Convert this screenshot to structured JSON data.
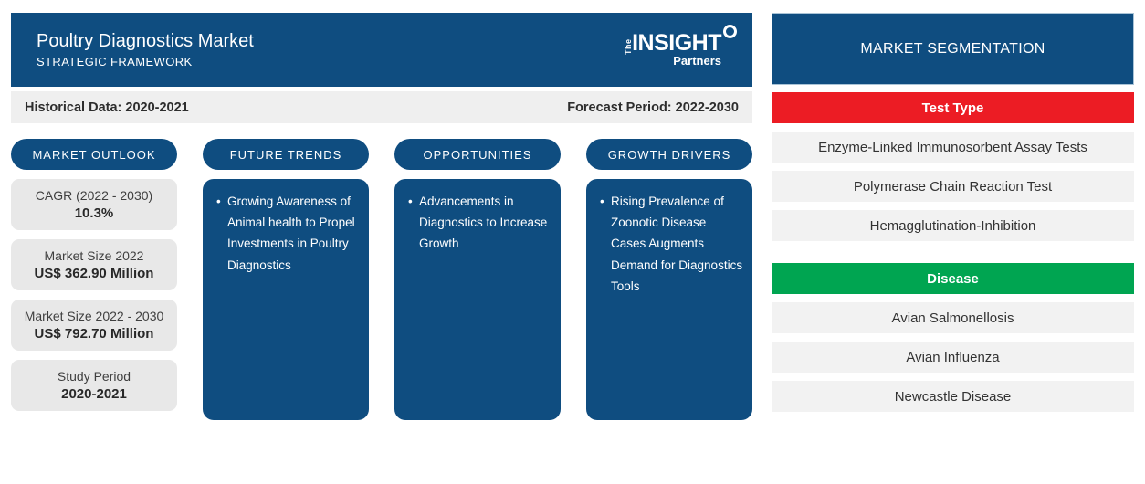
{
  "header": {
    "title": "Poultry Diagnostics Market",
    "subtitle": "STRATEGIC FRAMEWORK",
    "logo": {
      "the": "The",
      "insight": "INSIGHT",
      "partners": "Partners"
    }
  },
  "period_bar": {
    "historical": "Historical Data: 2020-2021",
    "forecast": "Forecast Period: 2022-2030"
  },
  "columns": [
    {
      "pill": "MARKET OUTLOOK",
      "stats": [
        {
          "label": "CAGR (2022 - 2030)",
          "value": "10.3%"
        },
        {
          "label": "Market Size 2022",
          "value": "US$ 362.90 Million"
        },
        {
          "label": "Market Size 2022 - 2030",
          "value": "US$ 792.70 Million"
        },
        {
          "label": "Study Period",
          "value": "2020-2021"
        }
      ]
    },
    {
      "pill": "FUTURE TRENDS",
      "bullet": "Growing Awareness of Animal health to Propel Investments in Poultry Diagnostics"
    },
    {
      "pill": "OPPORTUNITIES",
      "bullet": "Advancements in Diagnostics to Increase Growth"
    },
    {
      "pill": "GROWTH DRIVERS",
      "bullet": "Rising Prevalence of Zoonotic Disease Cases Augments Demand for Diagnostics Tools"
    }
  ],
  "segmentation": {
    "title": "MARKET SEGMENTATION",
    "groups": [
      {
        "name": "Test Type",
        "color": "#ec1c24",
        "items": [
          "Enzyme-Linked Immunosorbent Assay Tests",
          "Polymerase Chain Reaction Test",
          "Hemagglutination-Inhibition"
        ]
      },
      {
        "name": "Disease",
        "color": "#00a551",
        "items": [
          "Avian Salmonellosis",
          "Avian Influenza",
          "Newcastle Disease"
        ]
      }
    ]
  },
  "colors": {
    "brand_blue": "#0f4d80",
    "test_type_red": "#ec1c24",
    "disease_green": "#00a551",
    "light_gray": "#efefef",
    "box_gray": "#e8e8e8",
    "row_gray": "#f2f2f2"
  }
}
